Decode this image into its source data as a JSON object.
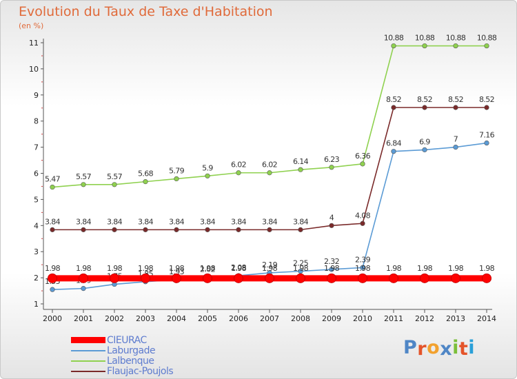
{
  "title": "Evolution du Taux de Taxe d'Habitation",
  "unit_label": "(en %)",
  "logo": {
    "letters": [
      "P",
      "r",
      "o",
      "x",
      "i",
      "t",
      "i"
    ],
    "colors": [
      "#4f86c6",
      "#e4542a",
      "#f2a12e",
      "#4f86c6",
      "#7bbf3a",
      "#e4542a",
      "#2aa0d8"
    ]
  },
  "chart_data": {
    "type": "line",
    "title": "Evolution du Taux de Taxe d'Habitation",
    "ylabel": "(en %)",
    "xlabel": "",
    "x": [
      "2000",
      "2001",
      "2002",
      "2003",
      "2004",
      "2005",
      "2006",
      "2007",
      "2008",
      "2009",
      "2010",
      "2011",
      "2012",
      "2013",
      "2014"
    ],
    "ylim": [
      1,
      11
    ],
    "yticks": [
      "1",
      "2",
      "3",
      "4",
      "5",
      "6",
      "7",
      "8",
      "9",
      "10",
      "11"
    ],
    "grid": false,
    "legend_position": "bottom-left",
    "series": [
      {
        "name": "Laburgade",
        "color": "#5b9bd5",
        "values": [
          1.55,
          1.59,
          1.75,
          1.85,
          1.93,
          2.02,
          2.08,
          2.19,
          2.25,
          2.32,
          2.39,
          6.84,
          6.9,
          7,
          7.16
        ],
        "labels": [
          "1.55",
          "1.59",
          "1.75",
          "1.85",
          "1.93",
          "2.02",
          "2.08",
          "2.19",
          "2.25",
          "2.32",
          "2.39",
          "6.84",
          "6.9",
          "7",
          "7.16"
        ],
        "label_pos": "above"
      },
      {
        "name": "Lalbenque",
        "color": "#8fd14f",
        "values": [
          5.47,
          5.57,
          5.57,
          5.68,
          5.79,
          5.9,
          6.02,
          6.02,
          6.14,
          6.23,
          6.36,
          10.88,
          10.88,
          10.88,
          10.88
        ],
        "labels": [
          "5.47",
          "5.57",
          "5.57",
          "5.68",
          "5.79",
          "5.9",
          "6.02",
          "6.02",
          "6.14",
          "6.23",
          "6.36",
          "10.88",
          "10.88",
          "10.88",
          "10.88"
        ],
        "label_pos": "above"
      },
      {
        "name": "Flaujac-Poujols",
        "color": "#7a2a2a",
        "values": [
          3.84,
          3.84,
          3.84,
          3.84,
          3.84,
          3.84,
          3.84,
          3.84,
          3.84,
          4,
          4.08,
          8.52,
          8.52,
          8.52,
          8.52
        ],
        "labels": [
          "3.84",
          "3.84",
          "3.84",
          "3.84",
          "3.84",
          "3.84",
          "3.84",
          "3.84",
          "3.84",
          "4",
          "4.08",
          "8.52",
          "8.52",
          "8.52",
          "8.52"
        ],
        "label_pos": "above"
      },
      {
        "name": "CIEURAC",
        "color": "#ff0000",
        "values": [
          1.98,
          1.98,
          1.98,
          1.98,
          1.98,
          1.98,
          1.98,
          1.98,
          1.98,
          1.98,
          1.98,
          1.98,
          1.98,
          1.98,
          1.98
        ],
        "labels": [
          "1.98",
          "1.98",
          "1.98",
          "1.98",
          "1.98",
          "1.98",
          "1.98",
          "1.98",
          "1.98",
          "1.98",
          "1.98",
          "1.98",
          "1.98",
          "1.98",
          "1.98"
        ],
        "label_pos": "above-far",
        "emphasis": true
      }
    ],
    "legend": [
      "CIEURAC",
      "Laburgade",
      "Lalbenque",
      "Flaujac-Poujols"
    ]
  }
}
